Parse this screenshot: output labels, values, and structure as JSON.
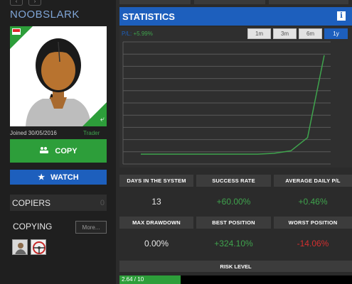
{
  "profile": {
    "username": "NOOBSLARK",
    "joined": "Joined 30/05/2016",
    "role": "Trader",
    "flag_icon": "singapore-flag-icon",
    "verified_icon": "handshake-icon"
  },
  "actions": {
    "copy_label": "COPY",
    "copy_icon": "people-icon",
    "watch_label": "WATCH",
    "watch_icon": "star-icon"
  },
  "copiers": {
    "label": "COPIERS",
    "count": "0"
  },
  "copying": {
    "label": "COPYING",
    "more_label": "More...",
    "avatars": [
      "man-avatar-icon",
      "steering-wheel-icon"
    ]
  },
  "statistics": {
    "title": "STATISTICS",
    "info_icon": "info-icon",
    "pl_prefix": "P/L:",
    "pl_value": "+5.99%",
    "ranges": [
      "1m",
      "3m",
      "6m",
      "1y"
    ],
    "active_range": "1y"
  },
  "chart_data": {
    "type": "line",
    "x": [
      0,
      1,
      2,
      3,
      4,
      5,
      6,
      7,
      8,
      9,
      10,
      11
    ],
    "values": [
      0,
      0,
      0,
      0,
      0,
      0,
      0,
      0,
      0.05,
      0.2,
      1.0,
      5.99
    ],
    "ylim": [
      -0.6,
      6.8
    ],
    "grid": true,
    "series_color": "#3fa34d"
  },
  "stats": {
    "days_label": "DAYS IN THE SYSTEM",
    "days_value": "13",
    "success_label": "SUCCESS RATE",
    "success_value": "+60.00%",
    "avg_label": "AVERAGE DAILY P/L",
    "avg_value": "+0.46%",
    "maxdd_label": "MAX DRAWDOWN",
    "maxdd_value": "0.00%",
    "best_label": "BEST POSITION",
    "best_value": "+324.10%",
    "worst_label": "WORST POSITION",
    "worst_value": "-14.06%"
  },
  "risk": {
    "label": "RISK LEVEL",
    "value_text": "2.64 / 10",
    "level": 2.64,
    "max": 10
  },
  "colors": {
    "accent_blue": "#1d5fbd",
    "positive_green": "#3fa34d",
    "negative_red": "#d32f2f"
  }
}
